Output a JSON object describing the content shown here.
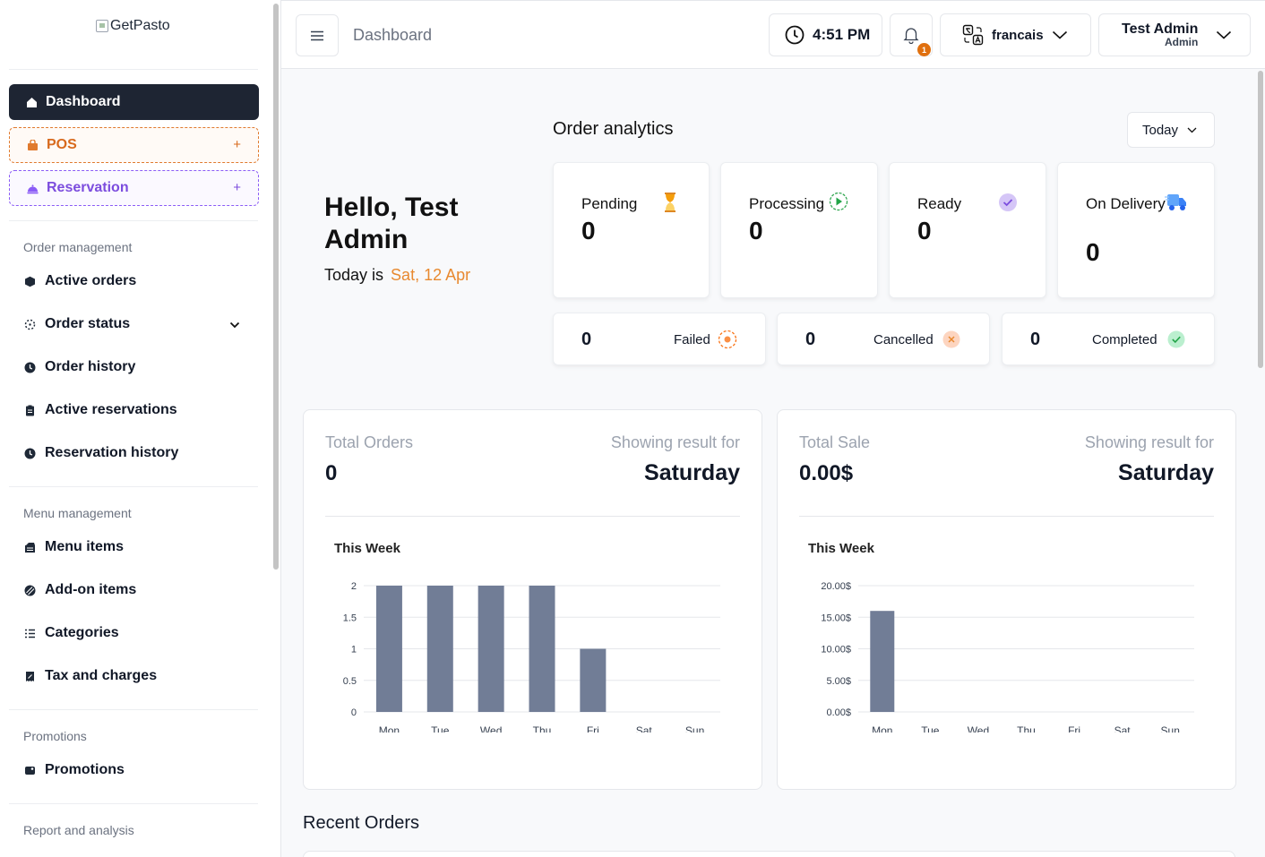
{
  "app": {
    "logo_alt": "GetPasto"
  },
  "sidebar": {
    "main": [
      {
        "label": "Dashboard",
        "icon": "home-icon"
      },
      {
        "label": "POS",
        "icon": "bag-icon",
        "plus": "+"
      },
      {
        "label": "Reservation",
        "icon": "bell-service-icon",
        "plus": "+"
      }
    ],
    "sections": {
      "order_mgmt": "Order management",
      "menu_mgmt": "Menu management",
      "promotions": "Promotions",
      "reports": "Report and analysis"
    },
    "order_items": [
      "Active orders",
      "Order status",
      "Order history",
      "Active reservations",
      "Reservation history"
    ],
    "menu_items": [
      "Menu items",
      "Add-on items",
      "Categories",
      "Tax and charges"
    ],
    "promo_items": [
      "Promotions"
    ]
  },
  "header": {
    "breadcrumb": "Dashboard",
    "time": "4:51 PM",
    "notif_count": "1",
    "language": "francais",
    "user_name": "Test Admin",
    "user_role": "Admin"
  },
  "greeting": {
    "hello": "Hello, Test Admin",
    "today_prefix": "Today is",
    "date": "Sat, 12 Apr"
  },
  "analytics": {
    "title": "Order analytics",
    "filter": "Today",
    "status": [
      {
        "label": "Pending",
        "value": "0",
        "icon": "hourglass-icon"
      },
      {
        "label": "Processing",
        "value": "0",
        "icon": "play-icon"
      },
      {
        "label": "Ready",
        "value": "0",
        "icon": "check-badge-icon"
      },
      {
        "label": "On Delivery",
        "value": "0",
        "icon": "truck-icon"
      }
    ],
    "mini": [
      {
        "label": "Failed",
        "value": "0",
        "icon": "failed-icon"
      },
      {
        "label": "Cancelled",
        "value": "0",
        "icon": "cancel-icon"
      },
      {
        "label": "Completed",
        "value": "0",
        "icon": "check-circle-icon"
      }
    ]
  },
  "total_orders": {
    "title": "Total Orders",
    "value": "0",
    "showing": "Showing result for",
    "day": "Saturday",
    "week_label": "This Week"
  },
  "total_sale": {
    "title": "Total Sale",
    "value": "0.00$",
    "showing": "Showing result for",
    "day": "Saturday",
    "week_label": "This Week"
  },
  "recent_orders": {
    "title": "Recent Orders"
  },
  "colors": {
    "bar": "#717d96",
    "accent": "#e8892f",
    "dark": "#1e2533"
  },
  "chart_data": [
    {
      "type": "bar",
      "title": "This Week",
      "categories": [
        "Mon",
        "Tue",
        "Wed",
        "Thu",
        "Fri",
        "Sat",
        "Sun"
      ],
      "values": [
        2,
        2,
        2,
        2,
        1,
        0,
        0
      ],
      "yticks": [
        "0",
        "0.5",
        "1",
        "1.5",
        "2"
      ],
      "ylim": [
        0,
        2
      ]
    },
    {
      "type": "bar",
      "title": "This Week",
      "categories": [
        "Mon",
        "Tue",
        "Wed",
        "Thu",
        "Fri",
        "Sat",
        "Sun"
      ],
      "values": [
        16,
        0,
        0,
        0,
        0,
        0,
        0
      ],
      "yticks": [
        "0.00$",
        "5.00$",
        "10.00$",
        "15.00$",
        "20.00$"
      ],
      "ylim": [
        0,
        20
      ]
    }
  ]
}
